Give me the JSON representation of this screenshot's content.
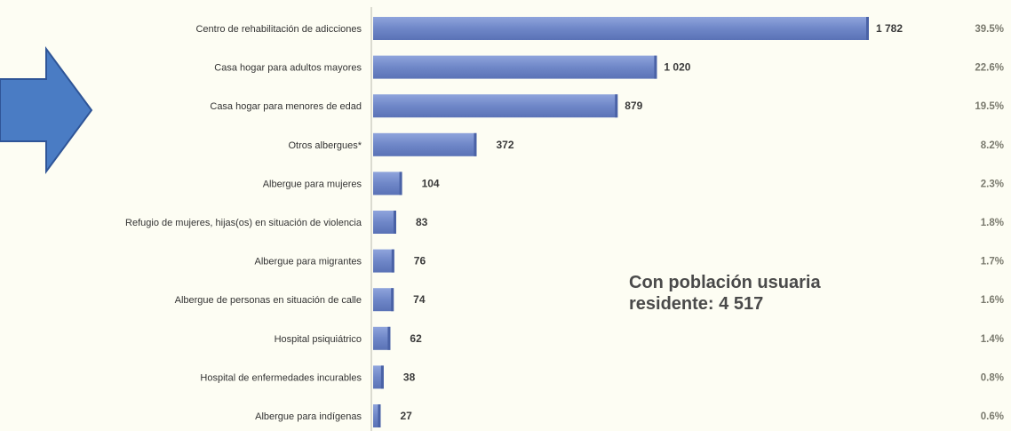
{
  "chart_data": {
    "type": "bar",
    "orientation": "horizontal",
    "categories": [
      "Centro de rehabilitación de adicciones",
      "Casa hogar para adultos mayores",
      "Casa hogar para menores de edad",
      "Otros albergues*",
      "Albergue para mujeres",
      "Refugio de mujeres, hijas(os) en situación de violencia",
      "Albergue para migrantes",
      "Albergue de personas en situación de calle",
      "Hospital psiquiátrico",
      "Hospital de enfermedades incurables",
      "Albergue para indígenas"
    ],
    "values": [
      1782,
      1020,
      879,
      372,
      104,
      83,
      76,
      74,
      62,
      38,
      27
    ],
    "value_labels": [
      "1 782",
      "1 020",
      "879",
      "372",
      "104",
      "83",
      "76",
      "74",
      "62",
      "38",
      "27"
    ],
    "percentages": [
      "39.5%",
      "22.6%",
      "19.5%",
      "8.2%",
      "2.3%",
      "1.8%",
      "1.7%",
      "1.6%",
      "1.4%",
      "0.8%",
      "0.6%"
    ],
    "xlim": [
      0,
      1782
    ],
    "grid": false,
    "legend": "none",
    "annotation": {
      "line1": "Con población usuaria",
      "line2": "residente: 4 517"
    },
    "colors": {
      "bar": "#6f87c8",
      "bar_dark": "#4a62a6",
      "arrow": "#4a7cc4",
      "arrow_stroke": "#2f5597",
      "background": "#fdfdf3"
    }
  },
  "decorations": {
    "arrow_icon": "right-arrow-icon",
    "highlighted_category_index": 2
  }
}
